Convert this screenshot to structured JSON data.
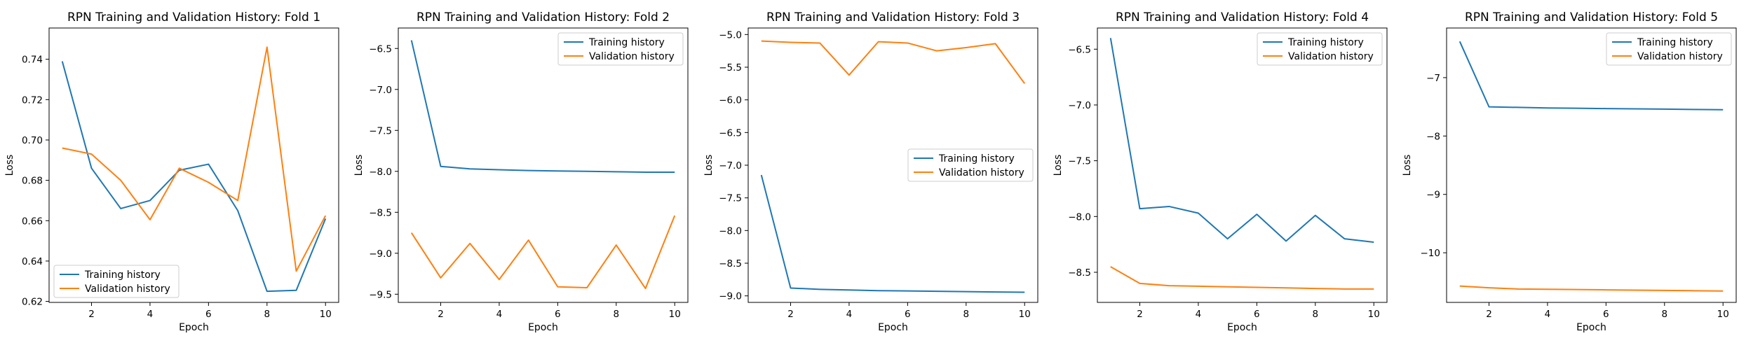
{
  "chart_data": [
    {
      "type": "line",
      "title": "RPN Training and Validation History: Fold 1",
      "xlabel": "Epoch",
      "ylabel": "Loss",
      "xlim": [
        0.55,
        10.45
      ],
      "ylim": [
        0.6195,
        0.7555
      ],
      "xticks": [
        2,
        4,
        6,
        8,
        10
      ],
      "yticks": [
        0.62,
        0.64,
        0.66,
        0.68,
        0.7,
        0.72,
        0.74
      ],
      "x": [
        1,
        2,
        3,
        4,
        5,
        6,
        7,
        8,
        9,
        10
      ],
      "legend_position": "lower left",
      "series": [
        {
          "name": "Training history",
          "color": "#1f77b4",
          "values": [
            0.739,
            0.686,
            0.666,
            0.67,
            0.685,
            0.688,
            0.665,
            0.625,
            0.6255,
            0.661
          ]
        },
        {
          "name": "Validation history",
          "color": "#ff7f0e",
          "values": [
            0.696,
            0.693,
            0.68,
            0.6605,
            0.686,
            0.679,
            0.67,
            0.746,
            0.635,
            0.6625
          ]
        }
      ]
    },
    {
      "type": "line",
      "title": "RPN Training and Validation History: Fold 2",
      "xlabel": "Epoch",
      "ylabel": "Loss",
      "xlim": [
        0.55,
        10.45
      ],
      "ylim": [
        -9.6,
        -6.25
      ],
      "xticks": [
        2,
        4,
        6,
        8,
        10
      ],
      "yticks": [
        -9.5,
        -9.0,
        -8.5,
        -8.0,
        -7.5,
        -7.0,
        -6.5
      ],
      "x": [
        1,
        2,
        3,
        4,
        5,
        6,
        7,
        8,
        9,
        10
      ],
      "legend_position": "upper right",
      "series": [
        {
          "name": "Training history",
          "color": "#1f77b4",
          "values": [
            -6.4,
            -7.94,
            -7.97,
            -7.98,
            -7.99,
            -7.995,
            -8.0,
            -8.005,
            -8.01,
            -8.01
          ]
        },
        {
          "name": "Validation history",
          "color": "#ff7f0e",
          "values": [
            -8.75,
            -9.3,
            -8.88,
            -9.32,
            -8.84,
            -9.41,
            -9.42,
            -8.9,
            -9.43,
            -8.54
          ]
        }
      ]
    },
    {
      "type": "line",
      "title": "RPN Training and Validation History: Fold 3",
      "xlabel": "Epoch",
      "ylabel": "Loss",
      "xlim": [
        0.55,
        10.45
      ],
      "ylim": [
        -9.1,
        -4.9
      ],
      "xticks": [
        2,
        4,
        6,
        8,
        10
      ],
      "yticks": [
        -9.0,
        -8.5,
        -8.0,
        -7.5,
        -7.0,
        -6.5,
        -6.0,
        -5.5,
        -5.0
      ],
      "x": [
        1,
        2,
        3,
        4,
        5,
        6,
        7,
        8,
        9,
        10
      ],
      "legend_position": "center right",
      "series": [
        {
          "name": "Training history",
          "color": "#1f77b4",
          "values": [
            -7.15,
            -8.88,
            -8.9,
            -8.91,
            -8.92,
            -8.925,
            -8.93,
            -8.935,
            -8.94,
            -8.945
          ]
        },
        {
          "name": "Validation history",
          "color": "#ff7f0e",
          "values": [
            -5.1,
            -5.12,
            -5.13,
            -5.62,
            -5.11,
            -5.13,
            -5.25,
            -5.2,
            -5.14,
            -5.75
          ]
        }
      ]
    },
    {
      "type": "line",
      "title": "RPN Training and Validation History: Fold 4",
      "xlabel": "Epoch",
      "ylabel": "Loss",
      "xlim": [
        0.55,
        10.45
      ],
      "ylim": [
        -8.77,
        -6.31
      ],
      "xticks": [
        2,
        4,
        6,
        8,
        10
      ],
      "yticks": [
        -8.5,
        -8.0,
        -7.5,
        -7.0,
        -6.5
      ],
      "x": [
        1,
        2,
        3,
        4,
        5,
        6,
        7,
        8,
        9,
        10
      ],
      "legend_position": "upper right",
      "series": [
        {
          "name": "Training history",
          "color": "#1f77b4",
          "values": [
            -6.4,
            -7.93,
            -7.91,
            -7.97,
            -8.2,
            -7.98,
            -8.22,
            -7.99,
            -8.2,
            -8.23
          ]
        },
        {
          "name": "Validation history",
          "color": "#ff7f0e",
          "values": [
            -8.45,
            -8.6,
            -8.62,
            -8.625,
            -8.63,
            -8.635,
            -8.64,
            -8.645,
            -8.65,
            -8.65
          ]
        }
      ]
    },
    {
      "type": "line",
      "title": "RPN Training and Validation History: Fold 5",
      "xlabel": "Epoch",
      "ylabel": "Loss",
      "xlim": [
        0.55,
        10.45
      ],
      "ylim": [
        -10.85,
        -6.15
      ],
      "xticks": [
        2,
        4,
        6,
        8,
        10
      ],
      "yticks": [
        -10,
        -9,
        -8,
        -7
      ],
      "x": [
        1,
        2,
        3,
        4,
        5,
        6,
        7,
        8,
        9,
        10
      ],
      "legend_position": "upper right",
      "series": [
        {
          "name": "Training history",
          "color": "#1f77b4",
          "values": [
            -6.38,
            -7.5,
            -7.51,
            -7.52,
            -7.525,
            -7.53,
            -7.535,
            -7.54,
            -7.545,
            -7.55
          ]
        },
        {
          "name": "Validation history",
          "color": "#ff7f0e",
          "values": [
            -10.57,
            -10.6,
            -10.62,
            -10.625,
            -10.63,
            -10.635,
            -10.64,
            -10.645,
            -10.65,
            -10.655
          ]
        }
      ]
    }
  ]
}
